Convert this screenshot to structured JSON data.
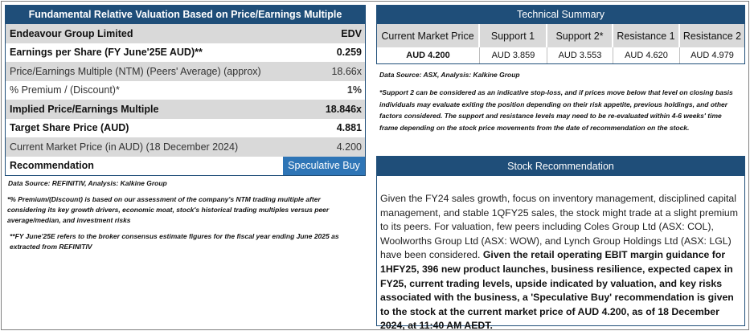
{
  "valuation": {
    "title": "Fundamental Relative Valuation Based on Price/Earnings Multiple",
    "company": "Endeavour Group Limited",
    "ticker": "EDV",
    "rows": [
      {
        "label": "Earnings per Share (FY June'25E AUD)**",
        "value": "0.259"
      },
      {
        "label": "Price/Earnings Multiple (NTM)  (Peers' Average) (approx)",
        "value": "18.66x"
      },
      {
        "label": "% Premium / (Discount)*",
        "value": "1%"
      },
      {
        "label": "Implied Price/Earnings Multiple",
        "value": "18.846x"
      },
      {
        "label": "Target Share Price (AUD)",
        "value": "4.881"
      },
      {
        "label": "Current Market Price (in AUD) (18 December 2024)",
        "value": "4.200"
      },
      {
        "label": "Recommendation",
        "value": "Speculative Buy"
      }
    ],
    "source": "Data Source: REFINITIV, Analysis: Kalkine Group",
    "note1": "*% Premium/(Discount) is based on our assessment of the company's NTM trading multiple after considering its key growth drivers, economic moat, stock's historical trading multiples versus peer average/median, and investment risks",
    "note2": "**FY June'25E refers to the broker consensus estimate figures for the fiscal year ending June 2025  as extracted from REFINITIV"
  },
  "technical": {
    "title": "Technical Summary",
    "headers": [
      "Current Market Price",
      "Support 1",
      "Support 2*",
      "Resistance 1",
      "Resistance 2"
    ],
    "values": [
      "AUD 4.200",
      "AUD 3.859",
      "AUD 3.553",
      "AUD 4.620",
      "AUD 4.979"
    ],
    "source": "Data Source: ASX, Analysis: Kalkine Group",
    "note": "*Support 2 can be considered as an indicative stop-loss, and if prices move below that level on closing basis individuals may evaluate exiting the position depending on their risk appetite, previous holdings, and other factors considered. The support and resistance levels may need to be re-evaluated within 4-6 weeks' time frame depending on the stock price movements from the date of recommendation on the stock."
  },
  "recommendation": {
    "title": "Stock Recommendation",
    "text_plain": "Given the FY24 sales growth, focus on inventory management, disciplined capital management, and stable 1QFY25 sales, the stock might trade at a slight premium to its peers. For valuation, few peers including Coles Group Ltd (ASX: COL), Woolworths Group Ltd (ASX: WOW), and Lynch Group Holdings Ltd (ASX: LGL) have been considered.",
    "text_bold": "Given the retail operating EBIT margin guidance for 1HFY25, 396 new product launches, business resilience, expected capex in FY25, current trading levels, upside indicated by valuation, and key risks associated with the business, a 'Speculative Buy' recommendation is given to the stock at the current market price of AUD 4.200, as of 18 December 2024, at 11:40 AM AEDT."
  },
  "colors": {
    "header_navy": "#1f4e79",
    "recommendation_blue": "#2e75b6",
    "premium_blue": "#1f6fbf",
    "shade_grey": "#d9d9d9"
  }
}
